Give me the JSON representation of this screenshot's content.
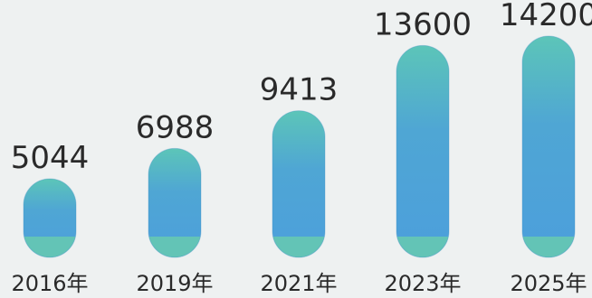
{
  "chart_data": {
    "type": "bar",
    "categories": [
      "2016年",
      "2019年",
      "2021年",
      "2023年",
      "2025年"
    ],
    "values": [
      5044,
      6988,
      9413,
      13600,
      14200
    ],
    "title": "",
    "xlabel": "",
    "ylabel": "",
    "ylim": [
      0,
      14200
    ],
    "grid": false,
    "colors": {
      "bar_top": "#5cc5b8",
      "bar_mid": "#4fa6d4",
      "bar_bottom": "#4c9fdc",
      "bar_base": "#63c4b6",
      "background": "#eef1f1",
      "text": "#2a2a2a"
    }
  }
}
